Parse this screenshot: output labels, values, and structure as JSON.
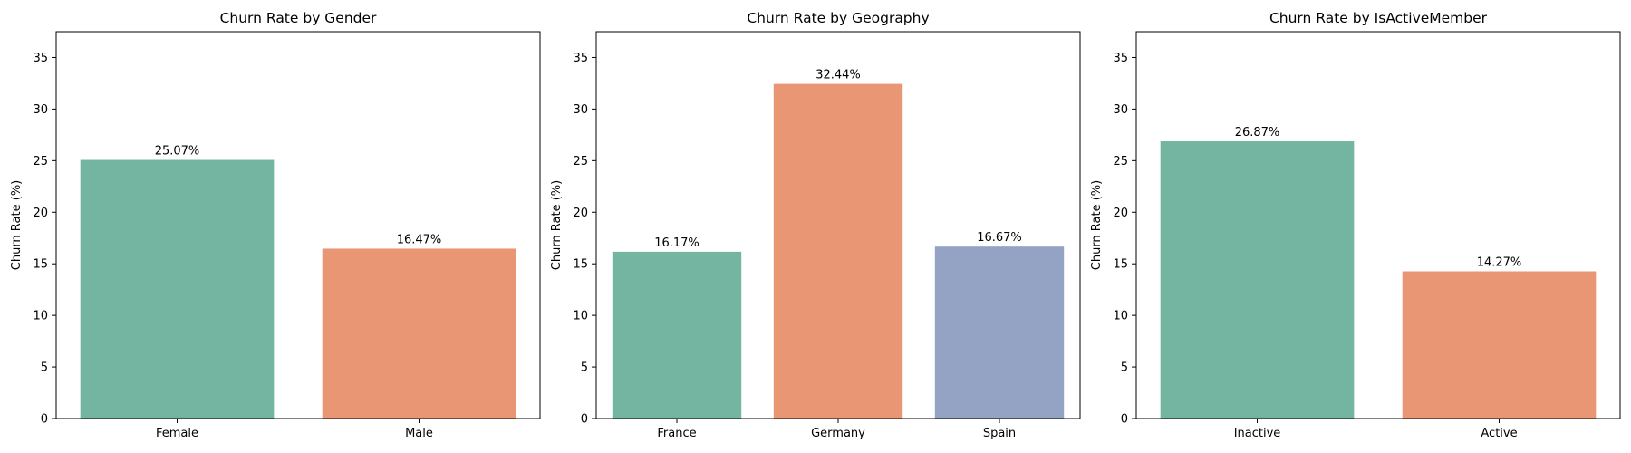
{
  "chart_data": [
    {
      "type": "bar",
      "title": "Churn Rate by Gender",
      "xlabel": "",
      "ylabel": "Churn Rate (%)",
      "categories": [
        "Female",
        "Male"
      ],
      "values": [
        25.07,
        16.47
      ],
      "data_labels": [
        "25.07%",
        "16.47%"
      ],
      "colors": [
        "#73b5a0",
        "#e89674"
      ],
      "ylim": [
        0,
        37.5
      ],
      "yticks": [
        0,
        5,
        10,
        15,
        20,
        25,
        30,
        35
      ],
      "grid": false,
      "legend": "none"
    },
    {
      "type": "bar",
      "title": "Churn Rate by Geography",
      "xlabel": "",
      "ylabel": "Churn Rate (%)",
      "categories": [
        "France",
        "Germany",
        "Spain"
      ],
      "values": [
        16.17,
        32.44,
        16.67
      ],
      "data_labels": [
        "16.17%",
        "32.44%",
        "16.67%"
      ],
      "colors": [
        "#73b5a0",
        "#e89674",
        "#94a3c3"
      ],
      "ylim": [
        0,
        37.5
      ],
      "yticks": [
        0,
        5,
        10,
        15,
        20,
        25,
        30,
        35
      ],
      "grid": false,
      "legend": "none"
    },
    {
      "type": "bar",
      "title": "Churn Rate by IsActiveMember",
      "xlabel": "",
      "ylabel": "Churn Rate (%)",
      "categories": [
        "Inactive",
        "Active"
      ],
      "values": [
        26.87,
        14.27
      ],
      "data_labels": [
        "26.87%",
        "14.27%"
      ],
      "colors": [
        "#73b5a0",
        "#e89674"
      ],
      "ylim": [
        0,
        37.5
      ],
      "yticks": [
        0,
        5,
        10,
        15,
        20,
        25,
        30,
        35
      ],
      "grid": false,
      "legend": "none"
    }
  ]
}
